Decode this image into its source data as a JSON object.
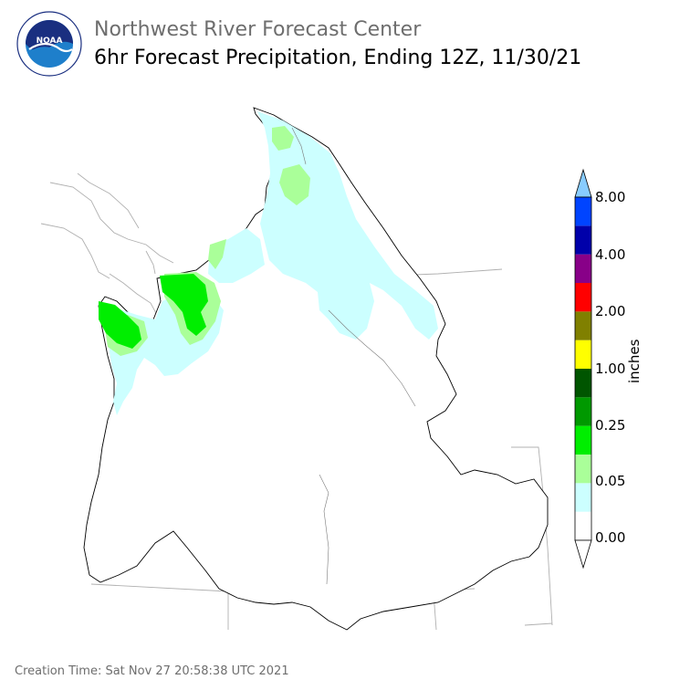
{
  "header": {
    "title": "Northwest River Forecast Center",
    "subtitle": "6hr Forecast Precipitation, Ending 12Z, 11/30/21"
  },
  "logo": {
    "text": "NOAA",
    "ring_text_top": "NATIONAL OCEANIC AND ATMOSPHERIC ADMINISTRATION",
    "ring_text_bottom": "U.S. DEPARTMENT OF COMMERCE",
    "colors": {
      "dark_blue": "#1a2f80",
      "light_blue": "#1e7fcb",
      "white": "#ffffff"
    }
  },
  "colorbar": {
    "title": "inches",
    "tick_labels": [
      "8.00",
      "4.00",
      "2.00",
      "1.00",
      "0.25",
      "0.05",
      "0.00"
    ],
    "bins": [
      {
        "color": "#ffffff"
      },
      {
        "color": "#ccffff"
      },
      {
        "color": "#aaff99"
      },
      {
        "color": "#00ee00"
      },
      {
        "color": "#009900"
      },
      {
        "color": "#005500"
      },
      {
        "color": "#ffff00"
      },
      {
        "color": "#808000"
      },
      {
        "color": "#ff0000"
      },
      {
        "color": "#880088"
      },
      {
        "color": "#0000aa"
      },
      {
        "color": "#0044ff"
      }
    ],
    "under_color": "#ffffff",
    "over_color": "#88ccff"
  },
  "map": {
    "region": "Pacific Northwest river basins",
    "precip_colors": {
      "light": "#ccffff",
      "moderate": "#aaff99",
      "heavy": "#00ee00"
    }
  },
  "footer": {
    "creation_time": "Creation Time: Sat Nov 27 20:58:38 UTC 2021"
  }
}
